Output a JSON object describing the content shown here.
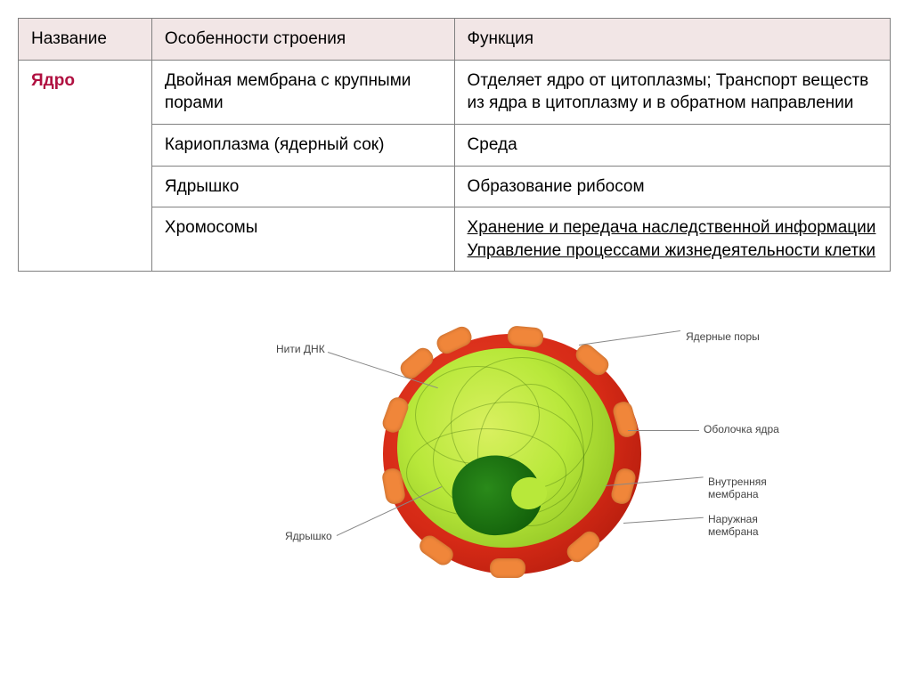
{
  "table": {
    "headers": [
      "Название",
      "Особенности строения",
      "Функция"
    ],
    "name": "Ядро",
    "rows": [
      {
        "structure": "Двойная мембрана с крупными порами",
        "function": "Отделяет ядро от цитоплазмы; Транспорт веществ из ядра в цитоплазму и в обратном направлении",
        "underlined": false
      },
      {
        "structure": "Кариоплазма (ядерный сок)",
        "function": "Среда",
        "underlined": false
      },
      {
        "structure": "Ядрышко",
        "function": "Образование рибосом",
        "underlined": false
      },
      {
        "structure": "Хромосомы",
        "function": "Хранение и передача наследственной информации\nУправление процессами жизнедеятельности клетки",
        "underlined": true
      }
    ]
  },
  "diagram": {
    "labels": {
      "dna": "Нити ДНК",
      "pores": "Ядерные поры",
      "envelope": "Оболочка ядра",
      "inner_membrane": "Внутренняя мембрана",
      "outer_membrane": "Наружная мембрана",
      "nucleolus": "Ядрышко"
    },
    "colors": {
      "outer_shell_light": "#e84028",
      "outer_shell_dark": "#9e1408",
      "inner_light": "#d9f060",
      "inner_mid": "#b8e83a",
      "inner_dark": "#7fb31a",
      "nucleolus_light": "#2a8a1a",
      "nucleolus_dark": "#0f5a08",
      "pore": "#f0863a",
      "label_color": "#444444",
      "lead_color": "#888888"
    }
  }
}
